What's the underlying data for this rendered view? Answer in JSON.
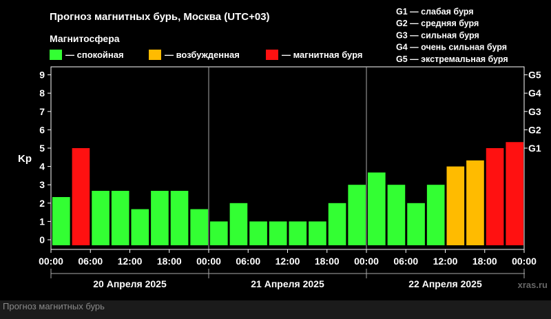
{
  "chart_data": {
    "type": "bar",
    "title": "Прогноз магнитных бурь, Москва (UTC+03)",
    "subtitle": "Магнитосфера",
    "legend": [
      {
        "label": "— спокойная",
        "color": "#33ff33"
      },
      {
        "label": "— возбужденная",
        "color": "#ffbb00"
      },
      {
        "label": "— магнитная буря",
        "color": "#ff1111"
      }
    ],
    "storm_levels": [
      "G1 — слабая буря",
      "G2 — средняя буря",
      "G3 — сильная буря",
      "G4 — очень сильная буря",
      "G5 — экстремальная буря"
    ],
    "ylabel": "Kp",
    "ylim": [
      0,
      9
    ],
    "yticks": [
      "0",
      "1",
      "2",
      "3",
      "4",
      "5",
      "6",
      "7",
      "8",
      "9"
    ],
    "right_ticks": [
      {
        "value": 5,
        "label": "G1"
      },
      {
        "value": 6,
        "label": "G2"
      },
      {
        "value": 7,
        "label": "G3"
      },
      {
        "value": 8,
        "label": "G4"
      },
      {
        "value": 9,
        "label": "G5"
      }
    ],
    "xticks": [
      "00:00",
      "06:00",
      "12:00",
      "18:00",
      "00:00",
      "06:00",
      "12:00",
      "18:00",
      "00:00",
      "06:00",
      "12:00",
      "18:00",
      "00:00"
    ],
    "days": [
      "20 Апреля 2025",
      "21 Апреля 2025",
      "22 Апреля 2025"
    ],
    "values": [
      2.33,
      5.0,
      2.67,
      2.67,
      1.67,
      2.67,
      2.67,
      1.67,
      1.0,
      2.0,
      1.0,
      1.0,
      1.0,
      1.0,
      2.0,
      3.0,
      3.67,
      3.0,
      2.0,
      3.0,
      4.0,
      4.33,
      5.0,
      5.33
    ],
    "levels": [
      "quiet",
      "storm",
      "quiet",
      "quiet",
      "quiet",
      "quiet",
      "quiet",
      "quiet",
      "quiet",
      "quiet",
      "quiet",
      "quiet",
      "quiet",
      "quiet",
      "quiet",
      "quiet",
      "quiet",
      "quiet",
      "quiet",
      "quiet",
      "active",
      "active",
      "storm",
      "storm"
    ],
    "level_colors": {
      "quiet": "#33ff33",
      "active": "#ffbb00",
      "storm": "#ff1111"
    },
    "grid": true,
    "watermark": "xras.ru"
  },
  "footer": {
    "caption": "Прогноз магнитных бурь"
  }
}
